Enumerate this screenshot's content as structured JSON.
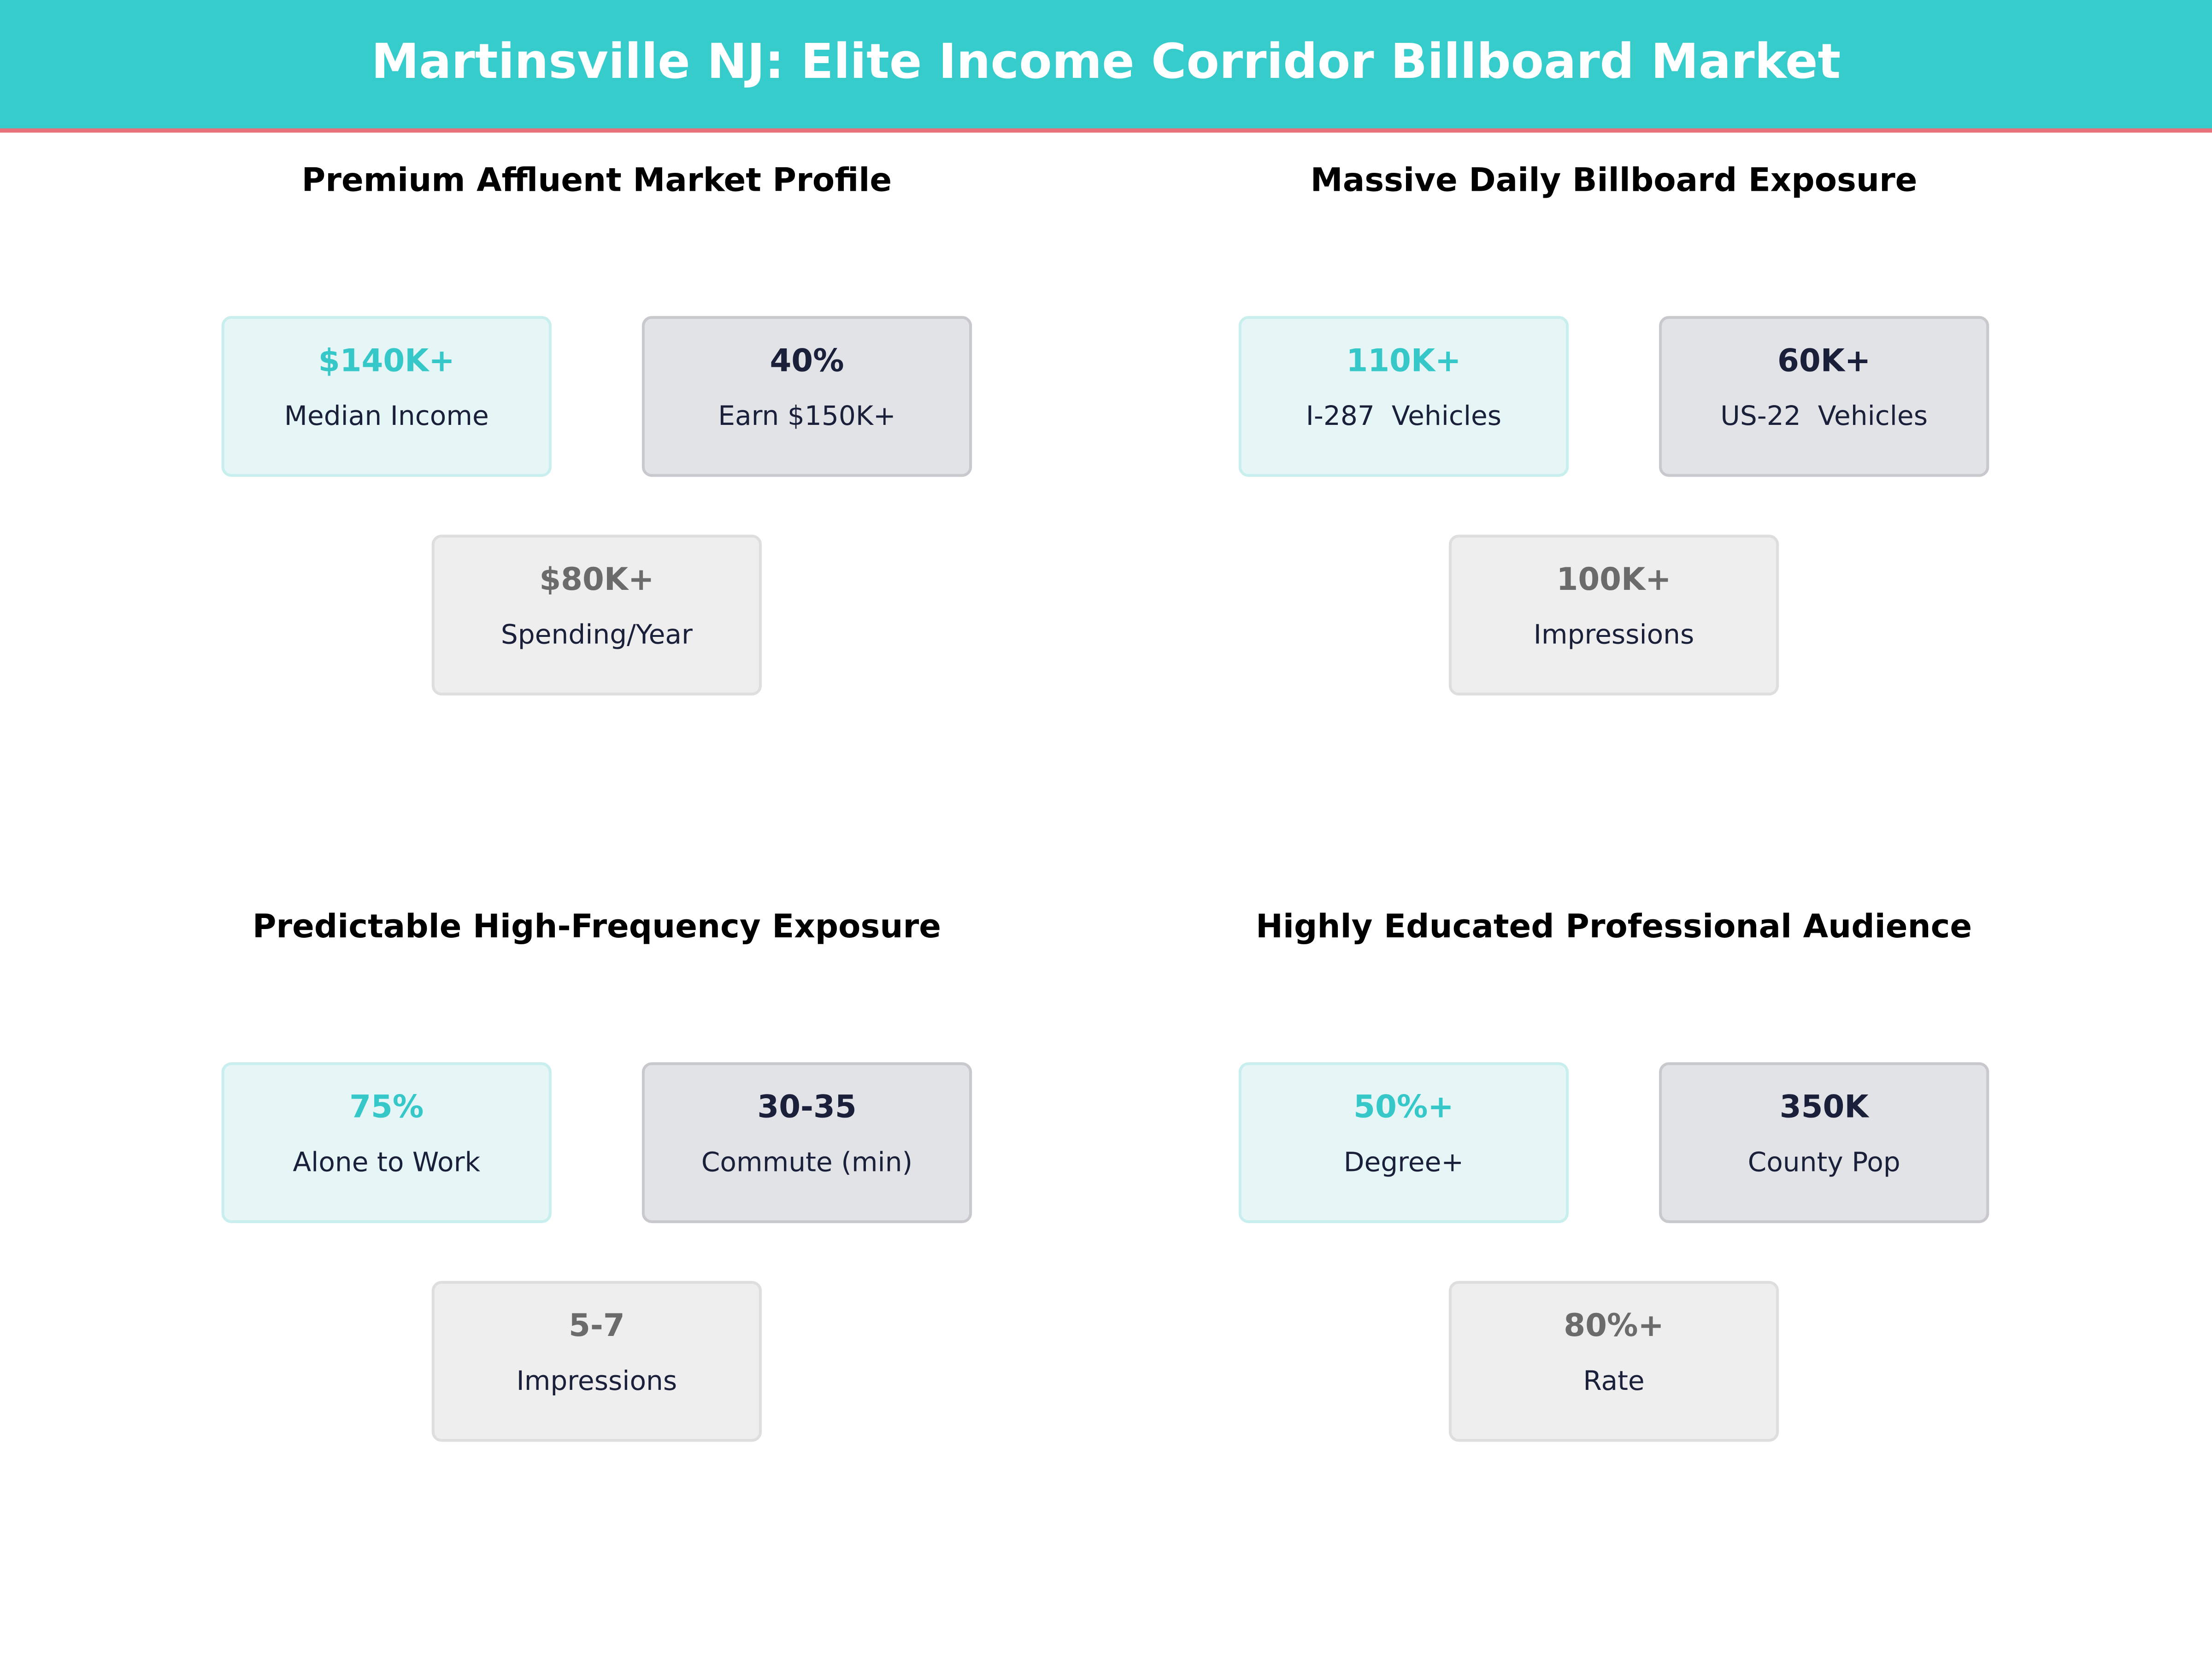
{
  "header": {
    "title": "Martinsville NJ: Elite Income Corridor Billboard Market"
  },
  "panels": [
    {
      "title": "Premium Affluent Market Profile",
      "cards": [
        {
          "value": "$140K+",
          "label": "Median Income"
        },
        {
          "value": "40%",
          "label": "Earn $150K+"
        },
        {
          "value": "$80K+",
          "label": "Spending/Year"
        }
      ]
    },
    {
      "title": "Massive Daily Billboard Exposure",
      "cards": [
        {
          "value": "110K+",
          "label": "I-287  Vehicles"
        },
        {
          "value": "60K+",
          "label": "US-22  Vehicles"
        },
        {
          "value": "100K+",
          "label": "Impressions"
        }
      ]
    },
    {
      "title": "Predictable High-Frequency Exposure",
      "cards": [
        {
          "value": "75%",
          "label": "Alone to Work"
        },
        {
          "value": "30-35",
          "label": "Commute (min)"
        },
        {
          "value": "5-7",
          "label": "Impressions"
        }
      ]
    },
    {
      "title": "Highly Educated Professional Audience",
      "cards": [
        {
          "value": "50%+",
          "label": "Degree+"
        },
        {
          "value": "350K",
          "label": "County Pop"
        },
        {
          "value": "80%+",
          "label": "Rate"
        }
      ]
    }
  ]
}
